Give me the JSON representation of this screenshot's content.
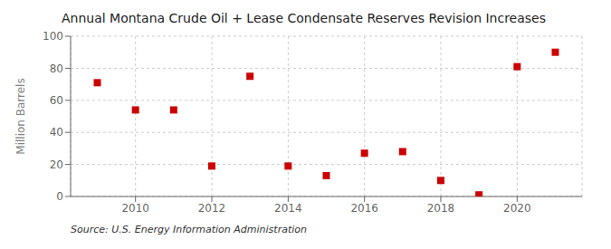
{
  "chart_data": {
    "type": "scatter",
    "title": "Annual Montana Crude Oil + Lease Condensate Reserves Revision Increases",
    "ylabel": "Million Barrels",
    "annotations": [
      "Source: U.S. Energy Information Administration"
    ],
    "x": [
      2009,
      2010,
      2011,
      2012,
      2013,
      2014,
      2015,
      2016,
      2017,
      2018,
      2019,
      2020,
      2021
    ],
    "values": [
      71,
      54,
      54,
      19,
      75,
      19,
      13,
      27,
      28,
      10,
      1,
      81,
      90
    ],
    "xlim": [
      2008.3,
      2021.7
    ],
    "ylim": [
      0,
      100
    ],
    "xticks": [
      2010,
      2012,
      2014,
      2016,
      2018,
      2020
    ],
    "yticks": [
      0,
      20,
      40,
      60,
      80,
      100
    ],
    "color": "#cc0000",
    "marker": "square",
    "grid": true
  }
}
